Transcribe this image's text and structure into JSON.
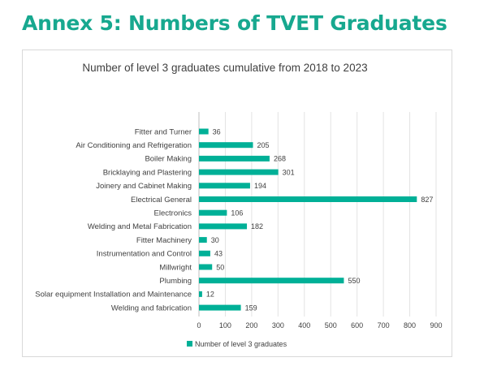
{
  "heading": "Annex 5: Numbers of TVET Graduates",
  "chart_data": {
    "type": "bar",
    "orientation": "horizontal",
    "title": "Number of level 3 graduates cumulative from 2018 to 2023",
    "categories": [
      "Fitter and Turner",
      "Air Conditioning and Refrigeration",
      "Boiler Making",
      "Bricklaying and Plastering",
      "Joinery and Cabinet Making",
      "Electrical General",
      "Electronics",
      "Welding and Metal Fabrication",
      "Fitter Machinery",
      "Instrumentation and Control",
      "Millwright",
      "Plumbing",
      "Solar equipment Installation and Maintenance",
      "Welding and fabrication"
    ],
    "series": [
      {
        "name": "Number of level 3 graduates",
        "values": [
          36,
          205,
          268,
          301,
          194,
          827,
          106,
          182,
          30,
          43,
          50,
          550,
          12,
          159
        ]
      }
    ],
    "xticks": [
      "0",
      "100",
      "200",
      "300",
      "400",
      "500",
      "600",
      "700",
      "800",
      "900"
    ],
    "xlim": [
      0,
      900
    ],
    "grid": "vertical",
    "legend": "bottom",
    "bar_color": "#00b097"
  }
}
